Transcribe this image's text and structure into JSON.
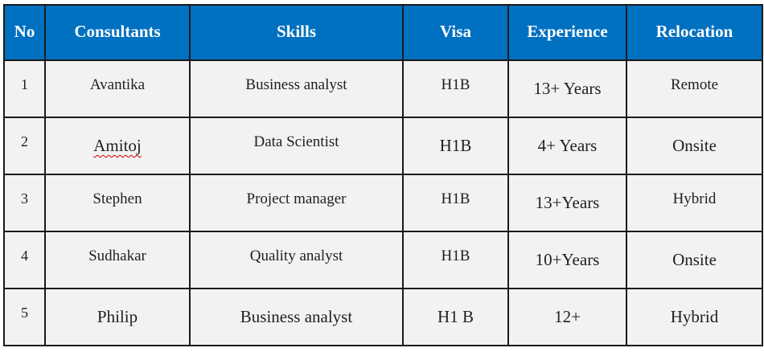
{
  "table": {
    "headers": [
      "No",
      "Consultants",
      "Skills",
      "Visa",
      "Experience",
      "Relocation"
    ],
    "rows": [
      {
        "no": "1",
        "consultant": "Avantika",
        "skills": "Business analyst",
        "visa": "H1B",
        "experience": "13+ Years",
        "relocation": "Remote"
      },
      {
        "no": "2",
        "consultant": "Amitoj",
        "skills": "Data Scientist",
        "visa": "H1B",
        "experience": "4+ Years",
        "relocation": "Onsite"
      },
      {
        "no": "3",
        "consultant": "Stephen",
        "skills": "Project manager",
        "visa": "H1B",
        "experience": "13+Years",
        "relocation": "Hybrid"
      },
      {
        "no": "4",
        "consultant": "Sudhakar",
        "skills": "Quality analyst",
        "visa": "H1B",
        "experience": "10+Years",
        "relocation": "Onsite"
      },
      {
        "no": "5",
        "consultant": "Philip",
        "skills": "Business analyst",
        "visa": "H1 B",
        "experience": "12+",
        "relocation": "Hybrid"
      }
    ]
  },
  "colors": {
    "header_background": "#0070c0",
    "header_text": "#ffffff",
    "cell_background": "#f2f2f2",
    "border": "#1a1a1a",
    "spellcheck_underline": "#d00000"
  }
}
